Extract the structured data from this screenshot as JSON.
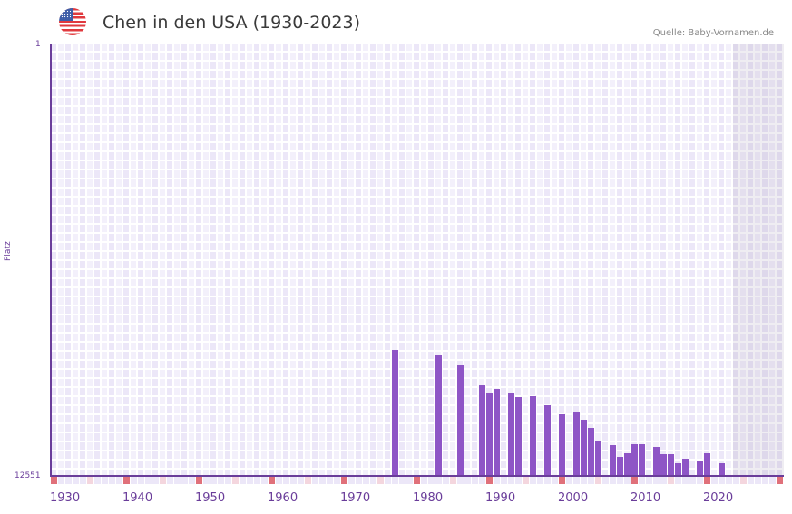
{
  "header": {
    "flag_icon": "us-flag-icon",
    "title": "Chen in den USA (1930-2023)",
    "source": "Quelle: Baby-Vornamen.de"
  },
  "colors": {
    "bar": "#8e55c6",
    "axis": "#6a3d9a",
    "decade_marker": "#e0707a",
    "half_decade_marker": "#f4d6de"
  },
  "axis": {
    "y_top_label": "1",
    "y_bottom_label": "12551",
    "y_title": "Platz",
    "x_ticks": [
      "1930",
      "1940",
      "1950",
      "1960",
      "1970",
      "1980",
      "1990",
      "2000",
      "2010",
      "2020"
    ]
  },
  "chart_data": {
    "type": "bar",
    "title": "Chen in den USA (1930-2023)",
    "xlabel": "",
    "ylabel": "Platz",
    "ylim": [
      12551,
      1
    ],
    "y_inverted": true,
    "xlim": [
      1930,
      2030
    ],
    "x_ticks": [
      1930,
      1940,
      1950,
      1960,
      1970,
      1980,
      1990,
      2000,
      2010,
      2020
    ],
    "grid": true,
    "shaded_future_from": 2024,
    "source": "Quelle: Baby-Vornamen.de",
    "categories": [
      1977,
      1983,
      1986,
      1989,
      1990,
      1991,
      1993,
      1994,
      1996,
      1998,
      2000,
      2002,
      2003,
      2004,
      2005,
      2007,
      2008,
      2009,
      2010,
      2011,
      2013,
      2014,
      2015,
      2016,
      2017,
      2019,
      2020,
      2022
    ],
    "series": [
      {
        "name": "Platz (Rang)",
        "values": [
          8893,
          9051,
          9340,
          9919,
          10156,
          10024,
          10156,
          10261,
          10235,
          10498,
          10761,
          10709,
          10919,
          11156,
          11551,
          11656,
          11998,
          11893,
          11630,
          11630,
          11709,
          11919,
          11919,
          12182,
          12051,
          12103,
          11893,
          12182
        ]
      }
    ]
  }
}
